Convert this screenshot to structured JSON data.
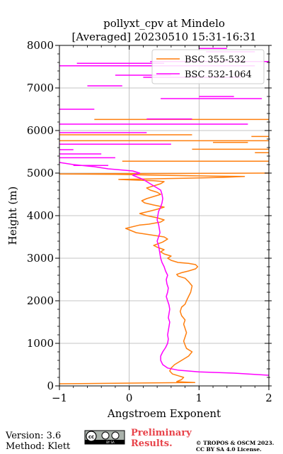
{
  "chart_data": {
    "type": "line",
    "title_line1": "pollyxt_cpv at Mindelo",
    "title_line2": "[Averaged] 20230510 15:31-16:31",
    "xlabel": "Angstroem Exponent",
    "ylabel": "Height (m)",
    "xlim": [
      -1,
      2
    ],
    "ylim": [
      0,
      8000
    ],
    "xticks": [
      -1,
      0,
      1,
      2
    ],
    "xtick_labels": [
      "−1",
      "0",
      "1",
      "2"
    ],
    "yticks": [
      0,
      1000,
      2000,
      3000,
      4000,
      5000,
      6000,
      7000,
      8000
    ],
    "grid": true,
    "legend_position": "top-right",
    "series": [
      {
        "name": "BSC 355-532",
        "color": "#ff7f0e",
        "x": [
          -1.0,
          0.94,
          0.68,
          0.75,
          0.78,
          0.62,
          0.58,
          0.6,
          0.65,
          0.75,
          0.85,
          0.9,
          0.82,
          0.8,
          0.78,
          0.8,
          0.82,
          0.8,
          0.78,
          0.8,
          0.75,
          0.73,
          0.75,
          0.8,
          0.82,
          0.85,
          0.88,
          0.9,
          0.85,
          0.8,
          0.7,
          0.68,
          0.75,
          0.85,
          0.95,
          0.98,
          0.95,
          0.85,
          0.7,
          0.6,
          0.55,
          0.6,
          0.5,
          0.45,
          0.5,
          0.4,
          0.35,
          0.48,
          0.55,
          0.5,
          0.3,
          0.1,
          -0.05,
          0.15,
          0.28,
          0.45,
          0.5,
          0.4,
          0.25,
          0.15,
          0.28,
          0.4,
          0.5,
          0.35,
          0.22,
          0.18,
          0.25,
          0.35,
          0.45,
          0.4,
          0.3,
          0.25,
          0.35,
          0.45,
          0.5,
          0.35,
          0.2,
          -0.15,
          0.2,
          0.5,
          0.8,
          1.1,
          1.35,
          1.5,
          1.65,
          1.2,
          0.8,
          0.4,
          0.1,
          -0.2,
          -1.0,
          2.0
        ],
        "y": [
          50,
          80,
          100,
          150,
          200,
          280,
          350,
          420,
          500,
          600,
          700,
          800,
          880,
          960,
          1050,
          1150,
          1250,
          1350,
          1450,
          1550,
          1650,
          1750,
          1850,
          1920,
          2000,
          2100,
          2200,
          2350,
          2450,
          2530,
          2580,
          2620,
          2660,
          2700,
          2750,
          2800,
          2850,
          2880,
          2900,
          2950,
          3000,
          3050,
          3100,
          3150,
          3200,
          3260,
          3300,
          3380,
          3450,
          3500,
          3550,
          3600,
          3700,
          3780,
          3800,
          3850,
          3900,
          3950,
          4000,
          4050,
          4100,
          4150,
          4200,
          4250,
          4300,
          4350,
          4400,
          4450,
          4500,
          4550,
          4600,
          4650,
          4700,
          4750,
          4800,
          4820,
          4830,
          4850,
          4860,
          4870,
          4880,
          4890,
          4900,
          4910,
          4920,
          4930,
          4940,
          4950,
          4960,
          4970,
          4980,
          5000
        ]
      },
      {
        "name": "BSC 532-1064",
        "color": "#ff00ff",
        "x": [
          2.0,
          1.5,
          1.0,
          0.7,
          0.55,
          0.48,
          0.45,
          0.45,
          0.48,
          0.52,
          0.55,
          0.56,
          0.55,
          0.56,
          0.57,
          0.58,
          0.56,
          0.57,
          0.58,
          0.57,
          0.55,
          0.53,
          0.55,
          0.56,
          0.54,
          0.53,
          0.55,
          0.52,
          0.5,
          0.47,
          0.45,
          0.44,
          0.43,
          0.42,
          0.4,
          0.42,
          0.44,
          0.43,
          0.42,
          0.4,
          0.41,
          0.42,
          0.45,
          0.47,
          0.48,
          0.47,
          0.45,
          0.35,
          0.2,
          0.05,
          0.15,
          0.05,
          -0.3,
          -0.5,
          -0.8,
          -1.0
        ],
        "y": [
          250,
          300,
          330,
          370,
          420,
          500,
          600,
          700,
          800,
          900,
          1000,
          1100,
          1200,
          1300,
          1400,
          1500,
          1600,
          1700,
          1800,
          1900,
          2000,
          2100,
          2200,
          2300,
          2400,
          2500,
          2600,
          2700,
          2800,
          2900,
          3000,
          3100,
          3200,
          3300,
          3400,
          3500,
          3600,
          3700,
          3800,
          3900,
          4000,
          4100,
          4200,
          4300,
          4400,
          4500,
          4600,
          4700,
          4850,
          4950,
          5000,
          5050,
          5100,
          5150,
          5200,
          5250
        ]
      }
    ],
    "noise_segments": [
      {
        "series": 0,
        "y": 5280,
        "x": [
          -0.1,
          2.0
        ]
      },
      {
        "series": 0,
        "y": 5480,
        "x": [
          1.8,
          2.0
        ]
      },
      {
        "series": 0,
        "y": 5560,
        "x": [
          0.9,
          2.0
        ]
      },
      {
        "series": 0,
        "y": 5720,
        "x": [
          1.2,
          1.7
        ]
      },
      {
        "series": 0,
        "y": 5760,
        "x": [
          -1.0,
          2.0
        ]
      },
      {
        "series": 0,
        "y": 5860,
        "x": [
          1.75,
          2.0
        ]
      },
      {
        "series": 0,
        "y": 5900,
        "x": [
          -1.0,
          0.9
        ]
      },
      {
        "series": 0,
        "y": 6260,
        "x": [
          -0.5,
          2.0
        ]
      },
      {
        "series": 1,
        "y": 5180,
        "x": [
          -0.8,
          -0.3
        ]
      },
      {
        "series": 1,
        "y": 5360,
        "x": [
          -1.0,
          -0.2
        ]
      },
      {
        "series": 1,
        "y": 5450,
        "x": [
          -1.0,
          -0.4
        ]
      },
      {
        "series": 1,
        "y": 5550,
        "x": [
          -1.0,
          -0.8
        ]
      },
      {
        "series": 1,
        "y": 5680,
        "x": [
          -1.0,
          0.6
        ]
      },
      {
        "series": 1,
        "y": 5950,
        "x": [
          -1.0,
          0.25
        ]
      },
      {
        "series": 1,
        "y": 6150,
        "x": [
          -1.0,
          1.7
        ]
      },
      {
        "series": 1,
        "y": 6270,
        "x": [
          0.25,
          0.9
        ]
      },
      {
        "series": 1,
        "y": 6500,
        "x": [
          -1.0,
          -0.5
        ]
      },
      {
        "series": 1,
        "y": 6750,
        "x": [
          0.45,
          1.9
        ]
      },
      {
        "series": 1,
        "y": 6800,
        "x": [
          1.0,
          1.5
        ]
      },
      {
        "series": 1,
        "y": 7050,
        "x": [
          -0.6,
          -0.1
        ]
      },
      {
        "series": 1,
        "y": 7250,
        "x": [
          0.2,
          1.6
        ]
      },
      {
        "series": 1,
        "y": 7300,
        "x": [
          -0.2,
          0.6
        ]
      },
      {
        "series": 1,
        "y": 7520,
        "x": [
          -1.0,
          1.8
        ]
      },
      {
        "series": 1,
        "y": 7580,
        "x": [
          -0.75,
          0.5
        ]
      },
      {
        "series": 1,
        "y": 7620,
        "x": [
          0.3,
          2.0
        ]
      },
      {
        "series": 1,
        "y": 7850,
        "x": [
          1.1,
          1.8
        ]
      },
      {
        "series": 1,
        "y": 7930,
        "x": [
          1.0,
          1.4
        ]
      }
    ]
  },
  "footer": {
    "version": "Version: 3.6",
    "method": "Method: Klett",
    "preliminary_line1": "Preliminary",
    "preliminary_line2": "Results.",
    "copyright_line1": "© TROPOS & OSCM 2023.",
    "copyright_line2": "CC BY SA 4.0 License.",
    "cc_badge_left": "cc",
    "cc_badge_right": "BY   SA"
  }
}
